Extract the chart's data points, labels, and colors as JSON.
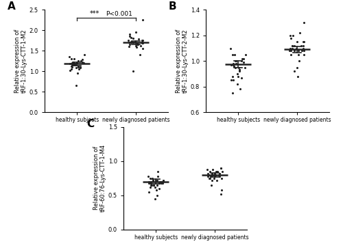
{
  "panel_A": {
    "label": "A",
    "ylabel": "Relative expression of\ntRF-1:30-Lys-CTT-1-M2",
    "ylim": [
      0.0,
      2.5
    ],
    "yticks": [
      0.0,
      0.5,
      1.0,
      1.5,
      2.0,
      2.5
    ],
    "groups": [
      "healthy subjects",
      "newly diagnosed patients"
    ],
    "group1_mean": 1.18,
    "group1_sem": 0.045,
    "group2_mean": 1.7,
    "group2_sem": 0.045,
    "group1_points": [
      1.15,
      1.2,
      1.1,
      1.25,
      1.3,
      1.05,
      1.18,
      1.22,
      1.12,
      1.08,
      1.35,
      1.4,
      1.28,
      1.15,
      1.1,
      1.2,
      1.18,
      0.95,
      0.65,
      1.22,
      1.05,
      1.12,
      1.3,
      1.18,
      1.08,
      1.25,
      1.15,
      1.2,
      1.1,
      1.02
    ],
    "group2_points": [
      1.65,
      1.72,
      1.7,
      1.75,
      1.68,
      1.62,
      1.8,
      1.85,
      1.78,
      1.72,
      1.9,
      1.95,
      1.75,
      1.68,
      1.72,
      1.65,
      1.7,
      1.62,
      1.58,
      1.82,
      2.25,
      1.4,
      1.55,
      1.72,
      1.68,
      1.75,
      1.65,
      1.7,
      1.6,
      1.0
    ],
    "sig_text": "***",
    "sig_pvalue": "P<0.001"
  },
  "panel_B": {
    "label": "B",
    "ylabel": "Relative expression of\ntRF-1:30-Lys-CTT-2-M2",
    "ylim": [
      0.6,
      1.4
    ],
    "yticks": [
      0.6,
      0.8,
      1.0,
      1.2,
      1.4
    ],
    "groups": [
      "healthy subjects",
      "newly diagnosed patients"
    ],
    "group1_mean": 0.975,
    "group1_sem": 0.028,
    "group2_mean": 1.09,
    "group2_sem": 0.022,
    "group1_points": [
      0.98,
      0.95,
      1.0,
      0.92,
      1.05,
      0.88,
      0.97,
      1.02,
      0.93,
      0.87,
      1.1,
      1.05,
      0.99,
      0.96,
      0.85,
      0.98,
      1.0,
      0.95,
      0.82,
      1.05,
      0.78,
      0.75,
      0.95,
      1.0,
      0.9,
      1.02,
      0.97,
      0.88,
      0.93,
      0.85
    ],
    "group2_points": [
      1.08,
      1.12,
      1.1,
      1.15,
      1.05,
      1.08,
      1.12,
      1.18,
      1.22,
      1.1,
      1.05,
      1.15,
      1.08,
      1.12,
      1.2,
      1.0,
      1.08,
      0.95,
      0.88,
      1.1,
      1.3,
      1.12,
      1.08,
      1.15,
      1.05,
      1.1,
      1.08,
      1.12,
      1.2,
      0.92
    ]
  },
  "panel_C": {
    "label": "C",
    "ylabel": "Relative expression of\ntRF-60:76-Lys-CTT-1-M4",
    "ylim": [
      0.0,
      1.5
    ],
    "yticks": [
      0.0,
      0.5,
      1.0,
      1.5
    ],
    "groups": [
      "healthy subjects",
      "newly diagnosed patients"
    ],
    "group1_mean": 0.7,
    "group1_sem": 0.035,
    "group2_mean": 0.8,
    "group2_sem": 0.03,
    "group1_points": [
      0.65,
      0.7,
      0.68,
      0.72,
      0.75,
      0.62,
      0.68,
      0.7,
      0.65,
      0.6,
      0.78,
      0.72,
      0.68,
      0.65,
      0.7,
      0.68,
      0.72,
      0.58,
      0.45,
      0.75,
      0.85,
      0.68,
      0.72,
      0.65,
      0.62,
      0.7,
      0.68,
      0.72,
      0.5,
      0.55,
      0.78,
      0.65,
      0.7,
      0.68,
      0.72
    ],
    "group2_points": [
      0.78,
      0.82,
      0.8,
      0.85,
      0.75,
      0.8,
      0.82,
      0.88,
      0.9,
      0.78,
      0.72,
      0.82,
      0.78,
      0.8,
      0.85,
      0.75,
      0.8,
      0.58,
      0.52,
      0.85,
      0.9,
      0.8,
      0.75,
      0.82,
      0.72,
      0.8,
      0.78,
      0.82,
      0.88,
      0.65,
      0.8,
      0.75,
      0.82,
      0.78,
      0.85
    ]
  },
  "dot_color": "#222222",
  "dot_size": 5,
  "line_color": "#222222",
  "bg_color": "#ffffff"
}
